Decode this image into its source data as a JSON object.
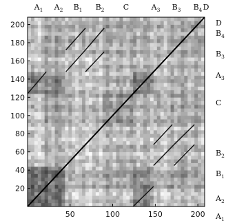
{
  "chart_data": {
    "type": "heatmap",
    "title": "",
    "xlabel": "",
    "ylabel": "",
    "xlim": [
      0,
      208
    ],
    "ylim": [
      0,
      208
    ],
    "x_ticks": [
      "50",
      "100",
      "150",
      "200"
    ],
    "y_ticks": [
      "20",
      "40",
      "60",
      "80",
      "100",
      "120",
      "140",
      "160",
      "180",
      "200"
    ],
    "colormap": "grayscale (white = low, black = high)",
    "grid": false,
    "top_labels": [
      {
        "text": "A",
        "sub": "1"
      },
      {
        "text": "A",
        "sub": "2"
      },
      {
        "text": "B",
        "sub": "1"
      },
      {
        "text": "B",
        "sub": "2"
      },
      {
        "text": "C",
        "sub": ""
      },
      {
        "text": "A",
        "sub": "3"
      },
      {
        "text": "B",
        "sub": "3"
      },
      {
        "text": "B",
        "sub": "4"
      },
      {
        "text": "D",
        "sub": ""
      }
    ],
    "right_labels": [
      {
        "text": "D",
        "sub": ""
      },
      {
        "text": "B",
        "sub": "4"
      },
      {
        "text": "B",
        "sub": "3"
      },
      {
        "text": "A",
        "sub": "3"
      },
      {
        "text": "C",
        "sub": ""
      },
      {
        "text": "B",
        "sub": "2"
      },
      {
        "text": "B",
        "sub": "1"
      },
      {
        "text": "A",
        "sub": "2"
      },
      {
        "text": "A",
        "sub": "1"
      }
    ],
    "sections": [
      {
        "label": "A1",
        "start": 0,
        "end": 22
      },
      {
        "label": "A2",
        "start": 22,
        "end": 45
      },
      {
        "label": "B1",
        "start": 45,
        "end": 68
      },
      {
        "label": "B2",
        "start": 68,
        "end": 88
      },
      {
        "label": "C",
        "start": 88,
        "end": 124
      },
      {
        "label": "A3",
        "start": 124,
        "end": 148
      },
      {
        "label": "B3",
        "start": 148,
        "end": 170
      },
      {
        "label": "B4",
        "start": 170,
        "end": 196
      },
      {
        "label": "D",
        "start": 196,
        "end": 208
      }
    ],
    "off_diagonal_lines": [
      {
        "x0": 0,
        "y0": 124,
        "x1": 22,
        "y1": 148
      },
      {
        "x0": 124,
        "y0": 0,
        "x1": 148,
        "y1": 22
      },
      {
        "x0": 45,
        "y0": 148,
        "x1": 68,
        "y1": 172
      },
      {
        "x0": 148,
        "y0": 45,
        "x1": 172,
        "y1": 68
      },
      {
        "x0": 68,
        "y0": 172,
        "x1": 90,
        "y1": 196
      },
      {
        "x0": 172,
        "y0": 68,
        "x1": 196,
        "y1": 90
      },
      {
        "x0": 45,
        "y0": 172,
        "x1": 68,
        "y1": 196
      },
      {
        "x0": 172,
        "y0": 45,
        "x1": 196,
        "y1": 68
      },
      {
        "x0": 68,
        "y0": 148,
        "x1": 90,
        "y1": 170
      },
      {
        "x0": 148,
        "y0": 68,
        "x1": 170,
        "y1": 90
      }
    ],
    "texture_blocks": [
      {
        "x": [
          0,
          45
        ],
        "y": [
          0,
          45
        ],
        "level": 0.55
      },
      {
        "x": [
          0,
          45
        ],
        "y": [
          124,
          148
        ],
        "level": 0.45
      },
      {
        "x": [
          124,
          148
        ],
        "y": [
          0,
          45
        ],
        "level": 0.45
      },
      {
        "x": [
          124,
          148
        ],
        "y": [
          124,
          148
        ],
        "level": 0.5
      },
      {
        "x": [
          88,
          124
        ],
        "y": [
          88,
          124
        ],
        "level": 0.4
      }
    ]
  }
}
